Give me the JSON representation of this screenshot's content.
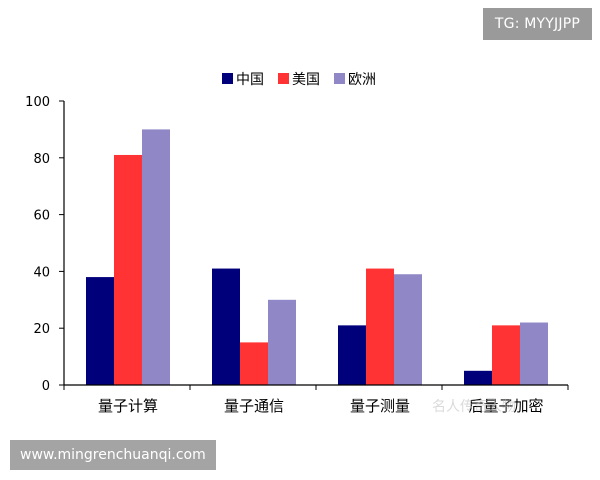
{
  "badges": {
    "telegram": "TG: MYYJJPP",
    "website": "www.mingrenchuanqi.com"
  },
  "watermark": "名人传奇人物",
  "chart_data": {
    "type": "bar",
    "categories": [
      "量子计算",
      "量子通信",
      "量子测量",
      "后量子加密"
    ],
    "series": [
      {
        "name": "中国",
        "color": "#00007a",
        "values": [
          38,
          41,
          21,
          5
        ]
      },
      {
        "name": "美国",
        "color": "#ff3333",
        "values": [
          81,
          15,
          41,
          21
        ]
      },
      {
        "name": "欧洲",
        "color": "#8f87c6",
        "values": [
          90,
          30,
          39,
          22
        ]
      }
    ],
    "yticks": [
      0,
      20,
      40,
      60,
      80,
      100
    ],
    "ylim": [
      0,
      100
    ],
    "title": "",
    "xlabel": "",
    "ylabel": "",
    "legend_position": "top-center",
    "grid": false
  }
}
